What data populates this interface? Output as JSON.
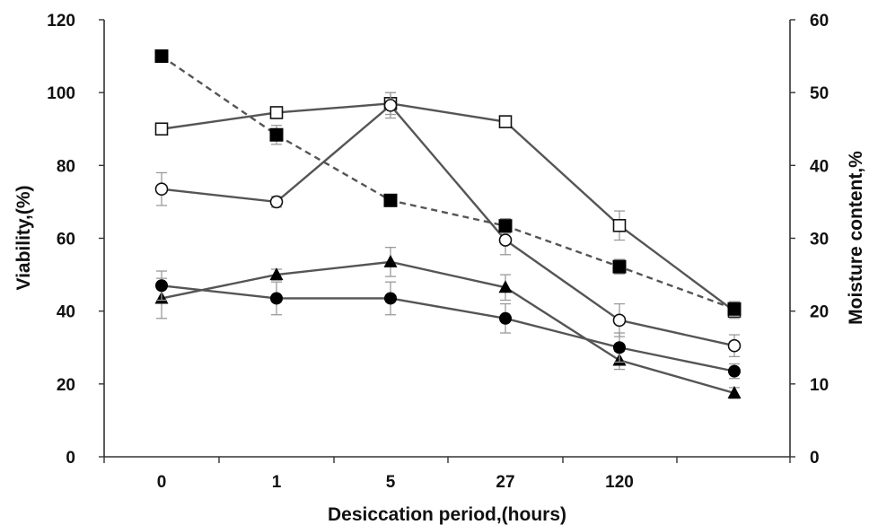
{
  "chart_data": {
    "type": "line",
    "xlabel": "Desiccation period,(hours)",
    "ylabel": "Viability,(%)",
    "y2label": "Moisture content,%",
    "categories": [
      "0",
      "1",
      "5",
      "27",
      "120",
      ""
    ],
    "ylim": [
      0,
      120
    ],
    "y2lim": [
      0,
      60
    ],
    "yticks": [
      0,
      20,
      40,
      60,
      80,
      100,
      120
    ],
    "y2ticks": [
      0,
      10,
      20,
      30,
      40,
      50,
      60
    ],
    "grid": false,
    "series": [
      {
        "marker": "open-square",
        "axis": "left",
        "line": "solid",
        "values": [
          90,
          94.5,
          97,
          92,
          63.5,
          40
        ],
        "errors": [
          1.5,
          1.5,
          3,
          1.5,
          4,
          2
        ]
      },
      {
        "marker": "open-circle",
        "axis": "left",
        "line": "solid",
        "values": [
          73.5,
          70,
          96.5,
          59.5,
          37.5,
          30.5
        ],
        "errors": [
          4.5,
          1.5,
          3.5,
          4,
          4.5,
          3
        ]
      },
      {
        "marker": "filled-triangle",
        "axis": "left",
        "line": "solid",
        "values": [
          43.5,
          50,
          53.5,
          46.5,
          26.5,
          17.5
        ],
        "errors": [
          5.5,
          1.5,
          4,
          3.5,
          2.5,
          1.5
        ]
      },
      {
        "marker": "filled-circle",
        "axis": "left",
        "line": "solid",
        "values": [
          47,
          43.5,
          43.5,
          38,
          30,
          23.5
        ],
        "errors": [
          4,
          4.5,
          4.5,
          4,
          4,
          2
        ]
      },
      {
        "marker": "filled-square",
        "axis": "right",
        "line": "dashed",
        "values": [
          55,
          44.2,
          35.2,
          31.7,
          26.1,
          20.3
        ],
        "errors": [
          0.8,
          1.3,
          0.8,
          1,
          1,
          1
        ]
      }
    ]
  }
}
